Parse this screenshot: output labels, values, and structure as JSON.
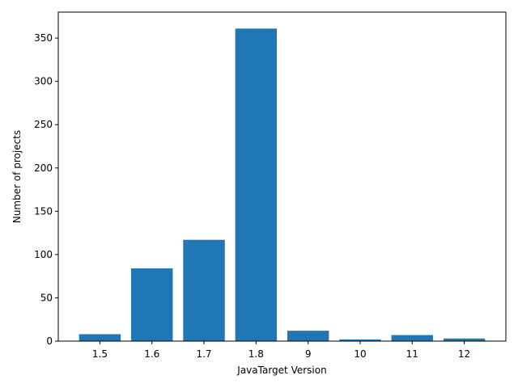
{
  "chart_data": {
    "type": "bar",
    "title": "",
    "xlabel": "JavaTarget Version",
    "ylabel": "Number of projects",
    "categories": [
      "1.5",
      "1.6",
      "1.7",
      "1.8",
      "9",
      "10",
      "11",
      "12"
    ],
    "values": [
      8,
      84,
      117,
      361,
      12,
      2,
      7,
      3
    ],
    "ylim": [
      0,
      380
    ],
    "yticks": [
      0,
      50,
      100,
      150,
      200,
      250,
      300,
      350
    ],
    "grid": false,
    "bar_color": "#1f77b4"
  }
}
